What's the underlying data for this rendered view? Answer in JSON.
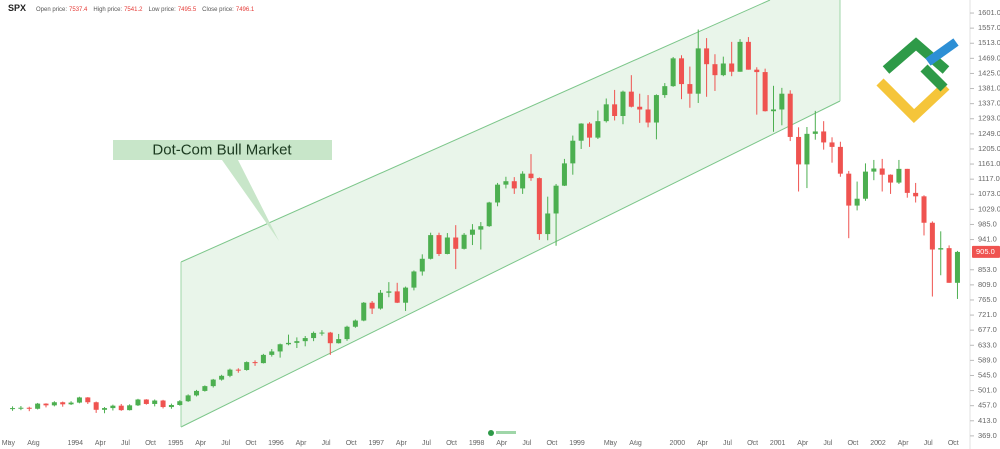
{
  "header": {
    "symbol": "SPX",
    "fields": [
      {
        "label": "Open price:",
        "value": "7537.4"
      },
      {
        "label": "High price:",
        "value": "7541.2"
      },
      {
        "label": "Low price:",
        "value": "7495.5"
      },
      {
        "label": "Close price:",
        "value": "7496.1"
      }
    ]
  },
  "chart_data": {
    "type": "candlestick",
    "annotation": "Dot-Com Bull Market",
    "up_color": "#4caf50",
    "down_color": "#ef5350",
    "ylim": [
      357,
      1639
    ],
    "xlim": [
      "1993-04",
      "2002-12"
    ],
    "grid": false,
    "yticks": [
      {
        "value": 369,
        "label": "369.0"
      },
      {
        "value": 413,
        "label": "413.0"
      },
      {
        "value": 457,
        "label": "457.0"
      },
      {
        "value": 501,
        "label": "501.0"
      },
      {
        "value": 545,
        "label": "545.0"
      },
      {
        "value": 589,
        "label": "589.0"
      },
      {
        "value": 633,
        "label": "633.0"
      },
      {
        "value": 677,
        "label": "677.0"
      },
      {
        "value": 721,
        "label": "721.0"
      },
      {
        "value": 765,
        "label": "765.0"
      },
      {
        "value": 809,
        "label": "809.0"
      },
      {
        "value": 853,
        "label": "853.0"
      },
      {
        "value": 941,
        "label": "941.0"
      },
      {
        "value": 985,
        "label": "985.0"
      },
      {
        "value": 1029,
        "label": "1029.0"
      },
      {
        "value": 1073,
        "label": "1073.0"
      },
      {
        "value": 1117,
        "label": "1117.0"
      },
      {
        "value": 1161,
        "label": "1161.0"
      },
      {
        "value": 1205,
        "label": "1205.0"
      },
      {
        "value": 1249,
        "label": "1249.0"
      },
      {
        "value": 1293,
        "label": "1293.0"
      },
      {
        "value": 1337,
        "label": "1337.0"
      },
      {
        "value": 1381,
        "label": "1381.0"
      },
      {
        "value": 1425,
        "label": "1425.0"
      },
      {
        "value": 1469,
        "label": "1469.0"
      },
      {
        "value": 1513,
        "label": "1513.0"
      },
      {
        "value": 1557,
        "label": "1557.0"
      },
      {
        "value": 1601,
        "label": "1601.0"
      }
    ],
    "xticks": [
      {
        "value": "1993-05",
        "label": "May"
      },
      {
        "value": "1993-08",
        "label": "Aug"
      },
      {
        "value": "1994-01",
        "label": "1994"
      },
      {
        "value": "1994-04",
        "label": "Apr"
      },
      {
        "value": "1994-07",
        "label": "Jul"
      },
      {
        "value": "1994-10",
        "label": "Oct"
      },
      {
        "value": "1995-01",
        "label": "1995"
      },
      {
        "value": "1995-04",
        "label": "Apr"
      },
      {
        "value": "1995-07",
        "label": "Jul"
      },
      {
        "value": "1995-10",
        "label": "Oct"
      },
      {
        "value": "1996-01",
        "label": "1996"
      },
      {
        "value": "1996-04",
        "label": "Apr"
      },
      {
        "value": "1996-07",
        "label": "Jul"
      },
      {
        "value": "1996-10",
        "label": "Oct"
      },
      {
        "value": "1997-01",
        "label": "1997"
      },
      {
        "value": "1997-04",
        "label": "Apr"
      },
      {
        "value": "1997-07",
        "label": "Jul"
      },
      {
        "value": "1997-10",
        "label": "Oct"
      },
      {
        "value": "1998-01",
        "label": "1998"
      },
      {
        "value": "1998-04",
        "label": "Apr"
      },
      {
        "value": "1998-07",
        "label": "Jul"
      },
      {
        "value": "1998-10",
        "label": "Oct"
      },
      {
        "value": "1999-01",
        "label": "1999"
      },
      {
        "value": "1999-05",
        "label": "May"
      },
      {
        "value": "1999-08",
        "label": "Aug"
      },
      {
        "value": "2000-01",
        "label": "2000"
      },
      {
        "value": "2000-04",
        "label": "Apr"
      },
      {
        "value": "2000-07",
        "label": "Jul"
      },
      {
        "value": "2000-10",
        "label": "Oct"
      },
      {
        "value": "2001-01",
        "label": "2001"
      },
      {
        "value": "2001-04",
        "label": "Apr"
      },
      {
        "value": "2001-07",
        "label": "Jul"
      },
      {
        "value": "2001-10",
        "label": "Oct"
      },
      {
        "value": "2002-01",
        "label": "2002"
      },
      {
        "value": "2002-04",
        "label": "Apr"
      },
      {
        "value": "2002-07",
        "label": "Jul"
      },
      {
        "value": "2002-10",
        "label": "Oct"
      }
    ],
    "x": [
      "1993-05",
      "1993-06",
      "1993-07",
      "1993-08",
      "1993-09",
      "1993-10",
      "1993-11",
      "1993-12",
      "1994-01",
      "1994-02",
      "1994-03",
      "1994-04",
      "1994-05",
      "1994-06",
      "1994-07",
      "1994-08",
      "1994-09",
      "1994-10",
      "1994-11",
      "1994-12",
      "1995-01",
      "1995-02",
      "1995-03",
      "1995-04",
      "1995-05",
      "1995-06",
      "1995-07",
      "1995-08",
      "1995-09",
      "1995-10",
      "1995-11",
      "1995-12",
      "1996-01",
      "1996-02",
      "1996-03",
      "1996-04",
      "1996-05",
      "1996-06",
      "1996-07",
      "1996-08",
      "1996-09",
      "1996-10",
      "1996-11",
      "1996-12",
      "1997-01",
      "1997-02",
      "1997-03",
      "1997-04",
      "1997-05",
      "1997-06",
      "1997-07",
      "1997-08",
      "1997-09",
      "1997-10",
      "1997-11",
      "1997-12",
      "1998-01",
      "1998-02",
      "1998-03",
      "1998-04",
      "1998-05",
      "1998-06",
      "1998-07",
      "1998-08",
      "1998-09",
      "1998-10",
      "1998-11",
      "1998-12",
      "1999-01",
      "1999-02",
      "1999-03",
      "1999-04",
      "1999-05",
      "1999-06",
      "1999-07",
      "1999-08",
      "1999-09",
      "1999-10",
      "1999-11",
      "1999-12",
      "2000-01",
      "2000-02",
      "2000-03",
      "2000-04",
      "2000-05",
      "2000-06",
      "2000-07",
      "2000-08",
      "2000-09",
      "2000-10",
      "2000-11",
      "2000-12",
      "2001-01",
      "2001-02",
      "2001-03",
      "2001-04",
      "2001-05",
      "2001-06",
      "2001-07",
      "2001-08",
      "2001-09",
      "2001-10",
      "2001-11",
      "2001-12",
      "2002-01",
      "2002-02",
      "2002-03",
      "2002-04",
      "2002-05",
      "2002-06",
      "2002-07",
      "2002-08",
      "2002-09",
      "2002-10"
    ],
    "ohlc": [
      [
        447,
        455,
        442,
        450
      ],
      [
        450,
        456,
        444,
        451
      ],
      [
        451,
        454,
        441,
        448
      ],
      [
        448,
        465,
        446,
        463
      ],
      [
        463,
        464,
        452,
        458
      ],
      [
        458,
        470,
        455,
        467
      ],
      [
        467,
        469,
        454,
        461
      ],
      [
        461,
        470,
        459,
        466
      ],
      [
        466,
        483,
        464,
        481
      ],
      [
        481,
        482,
        462,
        467
      ],
      [
        467,
        469,
        436,
        445
      ],
      [
        445,
        453,
        435,
        450
      ],
      [
        450,
        460,
        443,
        457
      ],
      [
        457,
        462,
        442,
        444
      ],
      [
        444,
        461,
        443,
        458
      ],
      [
        458,
        477,
        456,
        475
      ],
      [
        475,
        476,
        460,
        462
      ],
      [
        462,
        475,
        455,
        472
      ],
      [
        472,
        474,
        449,
        453
      ],
      [
        453,
        463,
        448,
        459
      ],
      [
        459,
        473,
        457,
        470
      ],
      [
        470,
        490,
        468,
        487
      ],
      [
        487,
        503,
        484,
        500
      ],
      [
        500,
        516,
        498,
        514
      ],
      [
        514,
        535,
        510,
        533
      ],
      [
        533,
        547,
        530,
        544
      ],
      [
        544,
        565,
        540,
        562
      ],
      [
        562,
        566,
        553,
        561
      ],
      [
        561,
        586,
        559,
        584
      ],
      [
        584,
        589,
        573,
        581
      ],
      [
        581,
        608,
        580,
        605
      ],
      [
        605,
        622,
        600,
        615
      ],
      [
        615,
        638,
        597,
        636
      ],
      [
        636,
        664,
        633,
        640
      ],
      [
        640,
        656,
        625,
        645
      ],
      [
        645,
        660,
        630,
        654
      ],
      [
        654,
        673,
        645,
        669
      ],
      [
        669,
        677,
        661,
        670
      ],
      [
        670,
        672,
        605,
        639
      ],
      [
        639,
        666,
        638,
        651
      ],
      [
        651,
        690,
        646,
        687
      ],
      [
        687,
        708,
        684,
        705
      ],
      [
        705,
        759,
        703,
        757
      ],
      [
        757,
        762,
        724,
        740
      ],
      [
        740,
        794,
        737,
        786
      ],
      [
        786,
        817,
        773,
        790
      ],
      [
        790,
        815,
        756,
        757
      ],
      [
        757,
        804,
        733,
        801
      ],
      [
        801,
        851,
        793,
        848
      ],
      [
        848,
        898,
        836,
        885
      ],
      [
        885,
        961,
        883,
        954
      ],
      [
        954,
        961,
        893,
        899
      ],
      [
        899,
        960,
        898,
        947
      ],
      [
        947,
        983,
        855,
        914
      ],
      [
        914,
        960,
        912,
        955
      ],
      [
        955,
        986,
        925,
        970
      ],
      [
        970,
        992,
        912,
        980
      ],
      [
        980,
        1051,
        978,
        1049
      ],
      [
        1049,
        1106,
        1038,
        1101
      ],
      [
        1101,
        1124,
        1090,
        1111
      ],
      [
        1111,
        1123,
        1074,
        1090
      ],
      [
        1090,
        1140,
        1074,
        1133
      ],
      [
        1133,
        1190,
        1112,
        1120
      ],
      [
        1120,
        1122,
        940,
        957
      ],
      [
        957,
        1066,
        939,
        1017
      ],
      [
        1017,
        1103,
        923,
        1098
      ],
      [
        1098,
        1176,
        1097,
        1163
      ],
      [
        1163,
        1244,
        1130,
        1229
      ],
      [
        1229,
        1280,
        1205,
        1279
      ],
      [
        1279,
        1283,
        1211,
        1238
      ],
      [
        1238,
        1317,
        1234,
        1286
      ],
      [
        1286,
        1352,
        1282,
        1335
      ],
      [
        1335,
        1377,
        1288,
        1301
      ],
      [
        1301,
        1375,
        1277,
        1372
      ],
      [
        1372,
        1420,
        1326,
        1328
      ],
      [
        1328,
        1366,
        1281,
        1320
      ],
      [
        1320,
        1362,
        1268,
        1282
      ],
      [
        1282,
        1364,
        1233,
        1362
      ],
      [
        1362,
        1397,
        1354,
        1388
      ],
      [
        1388,
        1473,
        1386,
        1469
      ],
      [
        1469,
        1478,
        1350,
        1394
      ],
      [
        1394,
        1445,
        1325,
        1366
      ],
      [
        1366,
        1553,
        1339,
        1498
      ],
      [
        1498,
        1528,
        1357,
        1452
      ],
      [
        1452,
        1481,
        1374,
        1420
      ],
      [
        1420,
        1474,
        1417,
        1454
      ],
      [
        1454,
        1517,
        1417,
        1430
      ],
      [
        1430,
        1525,
        1430,
        1517
      ],
      [
        1517,
        1531,
        1436,
        1436
      ],
      [
        1436,
        1443,
        1305,
        1429
      ],
      [
        1429,
        1439,
        1314,
        1315
      ],
      [
        1315,
        1389,
        1255,
        1320
      ],
      [
        1320,
        1383,
        1274,
        1366
      ],
      [
        1366,
        1376,
        1228,
        1240
      ],
      [
        1240,
        1268,
        1081,
        1160
      ],
      [
        1160,
        1269,
        1091,
        1249
      ],
      [
        1249,
        1316,
        1232,
        1256
      ],
      [
        1256,
        1286,
        1203,
        1224
      ],
      [
        1224,
        1239,
        1165,
        1211
      ],
      [
        1211,
        1226,
        1124,
        1133
      ],
      [
        1133,
        1141,
        945,
        1040
      ],
      [
        1040,
        1110,
        1026,
        1060
      ],
      [
        1060,
        1163,
        1054,
        1139
      ],
      [
        1139,
        1173,
        1114,
        1148
      ],
      [
        1148,
        1176,
        1081,
        1130
      ],
      [
        1130,
        1131,
        1074,
        1107
      ],
      [
        1107,
        1173,
        1103,
        1147
      ],
      [
        1147,
        1147,
        1063,
        1077
      ],
      [
        1077,
        1106,
        1049,
        1067
      ],
      [
        1067,
        1070,
        953,
        990
      ],
      [
        990,
        994,
        775,
        912
      ],
      [
        912,
        965,
        837,
        916
      ],
      [
        916,
        924,
        815,
        815
      ],
      [
        815,
        908,
        768,
        905
      ]
    ],
    "last_value_label": "905.0"
  }
}
